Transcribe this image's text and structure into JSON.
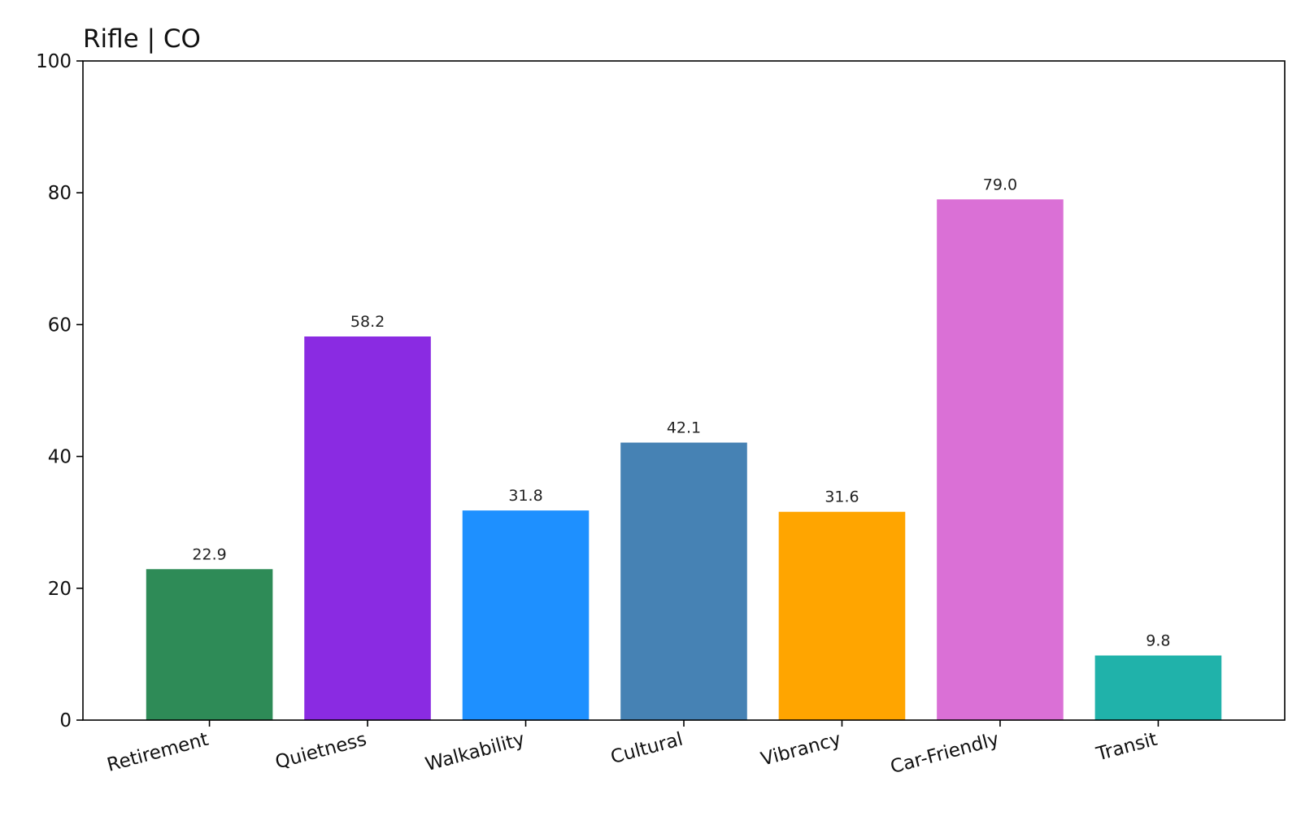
{
  "chart_data": {
    "type": "bar",
    "title": "Rifle | CO",
    "xlabel": "",
    "ylabel": "",
    "categories": [
      "Retirement",
      "Quietness",
      "Walkability",
      "Cultural",
      "Vibrancy",
      "Car-Friendly",
      "Transit"
    ],
    "values": [
      22.9,
      58.2,
      31.8,
      42.1,
      31.6,
      79.0,
      9.8
    ],
    "value_labels": [
      "22.9",
      "58.2",
      "31.8",
      "42.1",
      "31.6",
      "79.0",
      "9.8"
    ],
    "colors": [
      "#2e8b57",
      "#8a2be2",
      "#1e90ff",
      "#4682b4",
      "#ffa500",
      "#da70d6",
      "#20b2aa"
    ],
    "ylim": [
      0,
      100
    ],
    "yticks": [
      0,
      20,
      40,
      60,
      80,
      100
    ],
    "grid": false,
    "legend": "none"
  }
}
